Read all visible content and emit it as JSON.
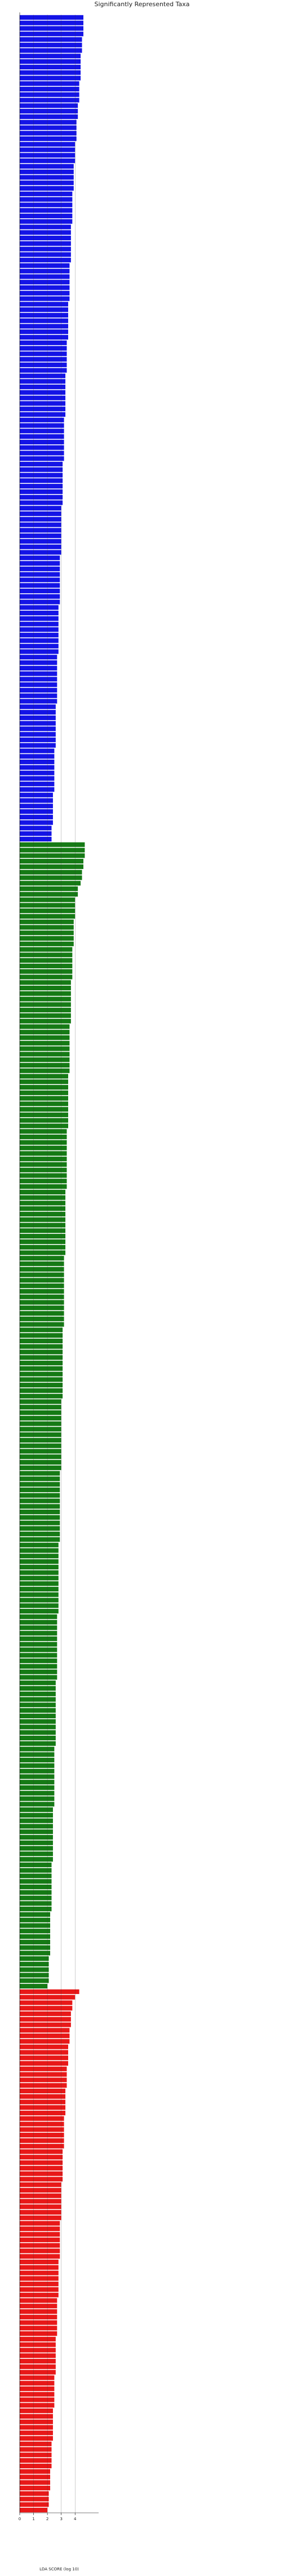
{
  "chart_data": {
    "type": "barh",
    "title": "Significantly Represented Taxa",
    "xlabel": "LDA SCORE (log 10)",
    "xlim": [
      0,
      5.7
    ],
    "xticks": [
      0,
      1,
      2,
      3,
      4
    ],
    "grid": true,
    "series": [
      {
        "color": "#1414e6",
        "values": [
          4.6,
          4.6,
          4.6,
          4.6,
          4.5,
          4.5,
          4.5,
          4.4,
          4.4,
          4.4,
          4.4,
          4.4,
          4.3,
          4.3,
          4.3,
          4.3,
          4.2,
          4.2,
          4.2,
          4.1,
          4.1,
          4.1,
          4.1,
          4,
          4,
          4,
          4,
          3.9,
          3.9,
          3.9,
          3.9,
          3.9,
          3.8,
          3.8,
          3.8,
          3.8,
          3.8,
          3.8,
          3.7,
          3.7,
          3.7,
          3.7,
          3.7,
          3.7,
          3.7,
          3.6,
          3.6,
          3.6,
          3.6,
          3.6,
          3.6,
          3.6,
          3.5,
          3.5,
          3.5,
          3.5,
          3.5,
          3.5,
          3.5,
          3.4,
          3.4,
          3.4,
          3.4,
          3.4,
          3.4,
          3.3,
          3.3,
          3.3,
          3.3,
          3.3,
          3.3,
          3.3,
          3.3,
          3.2,
          3.2,
          3.2,
          3.2,
          3.2,
          3.2,
          3.2,
          3.2,
          3.1,
          3.1,
          3.1,
          3.1,
          3.1,
          3.1,
          3.1,
          3.1,
          3,
          3,
          3,
          3,
          3,
          3,
          3,
          3,
          3,
          2.9,
          2.9,
          2.9,
          2.9,
          2.9,
          2.9,
          2.9,
          2.9,
          2.9,
          2.8,
          2.8,
          2.8,
          2.8,
          2.8,
          2.8,
          2.8,
          2.8,
          2.8,
          2.7,
          2.7,
          2.7,
          2.7,
          2.7,
          2.7,
          2.7,
          2.7,
          2.7,
          2.6,
          2.6,
          2.6,
          2.6,
          2.6,
          2.6,
          2.6,
          2.6,
          2.5,
          2.5,
          2.5,
          2.5,
          2.5,
          2.5,
          2.5,
          2.5,
          2.4,
          2.4,
          2.4,
          2.4,
          2.4,
          2.4,
          2.3,
          2.3,
          2.3
        ]
      },
      {
        "color": "#157a15",
        "values": [
          4.7,
          4.7,
          4.7,
          4.6,
          4.6,
          4.5,
          4.5,
          4.4,
          4.2,
          4.2,
          4,
          4,
          4,
          4,
          3.9,
          3.9,
          3.9,
          3.9,
          3.9,
          3.8,
          3.8,
          3.8,
          3.8,
          3.8,
          3.8,
          3.7,
          3.7,
          3.7,
          3.7,
          3.7,
          3.7,
          3.7,
          3.7,
          3.6,
          3.6,
          3.6,
          3.6,
          3.6,
          3.6,
          3.6,
          3.6,
          3.6,
          3.5,
          3.5,
          3.5,
          3.5,
          3.5,
          3.5,
          3.5,
          3.5,
          3.5,
          3.5,
          3.4,
          3.4,
          3.4,
          3.4,
          3.4,
          3.4,
          3.4,
          3.4,
          3.4,
          3.4,
          3.4,
          3.3,
          3.3,
          3.3,
          3.3,
          3.3,
          3.3,
          3.3,
          3.3,
          3.3,
          3.3,
          3.3,
          3.3,
          3.2,
          3.2,
          3.2,
          3.2,
          3.2,
          3.2,
          3.2,
          3.2,
          3.2,
          3.2,
          3.2,
          3.2,
          3.2,
          3.1,
          3.1,
          3.1,
          3.1,
          3.1,
          3.1,
          3.1,
          3.1,
          3.1,
          3.1,
          3.1,
          3.1,
          3.1,
          3,
          3,
          3,
          3,
          3,
          3,
          3,
          3,
          3,
          3,
          3,
          3,
          3,
          2.9,
          2.9,
          2.9,
          2.9,
          2.9,
          2.9,
          2.9,
          2.9,
          2.9,
          2.9,
          2.9,
          2.9,
          2.9,
          2.8,
          2.8,
          2.8,
          2.8,
          2.8,
          2.8,
          2.8,
          2.8,
          2.8,
          2.8,
          2.8,
          2.8,
          2.8,
          2.7,
          2.7,
          2.7,
          2.7,
          2.7,
          2.7,
          2.7,
          2.7,
          2.7,
          2.7,
          2.7,
          2.7,
          2.6,
          2.6,
          2.6,
          2.6,
          2.6,
          2.6,
          2.6,
          2.6,
          2.6,
          2.6,
          2.6,
          2.6,
          2.5,
          2.5,
          2.5,
          2.5,
          2.5,
          2.5,
          2.5,
          2.5,
          2.5,
          2.5,
          2.5,
          2.4,
          2.4,
          2.4,
          2.4,
          2.4,
          2.4,
          2.4,
          2.4,
          2.4,
          2.4,
          2.3,
          2.3,
          2.3,
          2.3,
          2.3,
          2.3,
          2.3,
          2.3,
          2.3,
          2.2,
          2.2,
          2.2,
          2.2,
          2.2,
          2.2,
          2.2,
          2.2,
          2.1,
          2.1,
          2.1,
          2.1,
          2.1,
          2
        ]
      },
      {
        "color": "#e81818",
        "values": [
          4.3,
          4,
          3.8,
          3.8,
          3.7,
          3.7,
          3.7,
          3.6,
          3.6,
          3.6,
          3.5,
          3.5,
          3.5,
          3.5,
          3.4,
          3.4,
          3.4,
          3.4,
          3.3,
          3.3,
          3.3,
          3.3,
          3.3,
          3.2,
          3.2,
          3.2,
          3.2,
          3.2,
          3.2,
          3.1,
          3.1,
          3.1,
          3.1,
          3.1,
          3.1,
          3,
          3,
          3,
          3,
          3,
          3,
          3,
          2.9,
          2.9,
          2.9,
          2.9,
          2.9,
          2.9,
          2.9,
          2.8,
          2.8,
          2.8,
          2.8,
          2.8,
          2.8,
          2.8,
          2.7,
          2.7,
          2.7,
          2.7,
          2.7,
          2.7,
          2.7,
          2.6,
          2.6,
          2.6,
          2.6,
          2.6,
          2.6,
          2.6,
          2.5,
          2.5,
          2.5,
          2.5,
          2.5,
          2.5,
          2.4,
          2.4,
          2.4,
          2.4,
          2.4,
          2.4,
          2.3,
          2.3,
          2.3,
          2.3,
          2.3,
          2.2,
          2.2,
          2.2,
          2.2,
          2.1,
          2.1,
          2.1,
          2
        ]
      }
    ]
  }
}
